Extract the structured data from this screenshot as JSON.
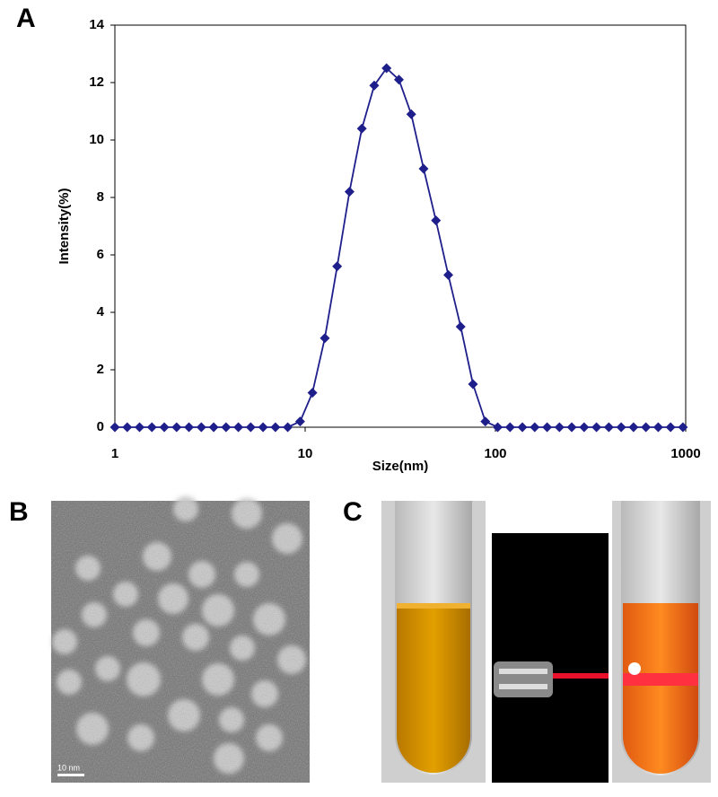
{
  "chart_data": {
    "type": "line",
    "x_label": "Size(nm)",
    "y_label": "Intensity(%)",
    "log_x": true,
    "color": "#1f1f8c",
    "x": [
      1,
      1.161,
      1.348,
      1.565,
      1.818,
      2.111,
      2.451,
      2.847,
      3.306,
      3.839,
      4.457,
      5.175,
      6.009,
      6.978,
      8.102,
      9.408,
      10.92,
      12.69,
      14.73,
      17.11,
      19.86,
      23.07,
      26.78,
      31.1,
      36.11,
      41.93,
      48.69,
      56.54,
      65.65,
      76.23,
      88.51,
      102.8,
      119.4,
      138.6,
      160.9,
      186.9,
      217,
      251.9,
      292.5,
      339.7,
      394.5,
      458.1,
      531.9,
      617.7,
      717.2,
      832.8,
      967
    ],
    "values": [
      0,
      0,
      0,
      0,
      0,
      0,
      0,
      0,
      0,
      0,
      0,
      0,
      0,
      0,
      0,
      0.2,
      1.2,
      3.1,
      5.6,
      8.2,
      10.4,
      11.9,
      12.5,
      12.1,
      10.9,
      9.0,
      7.2,
      5.3,
      3.5,
      1.5,
      0.2,
      0,
      0,
      0,
      0,
      0,
      0,
      0,
      0,
      0,
      0,
      0,
      0,
      0,
      0,
      0,
      0
    ],
    "xlim": [
      1,
      1000
    ],
    "xticks": [
      1,
      10,
      100,
      1000
    ],
    "ylim": [
      0,
      14
    ],
    "yticks": [
      0,
      2,
      4,
      6,
      8,
      10,
      12,
      14
    ]
  },
  "panel_labels": [
    "A",
    "B",
    "C"
  ],
  "scale_bar": "10 nm"
}
